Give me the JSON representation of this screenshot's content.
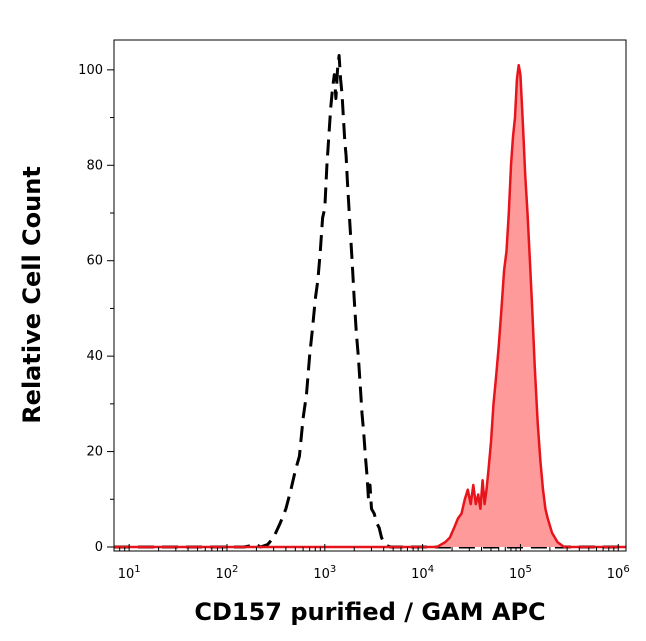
{
  "chart_data": {
    "type": "area",
    "xlabel": "CD157 purified  / GAM APC",
    "ylabel": "Relative Cell Count",
    "xscale": "log",
    "xlim": [
      7,
      1200000
    ],
    "ylim": [
      0,
      105
    ],
    "x_ticks": [
      {
        "value": 10,
        "base": "10",
        "exp": "1"
      },
      {
        "value": 100,
        "base": "10",
        "exp": "2"
      },
      {
        "value": 1000,
        "base": "10",
        "exp": "3"
      },
      {
        "value": 10000,
        "base": "10",
        "exp": "4"
      },
      {
        "value": 100000,
        "base": "10",
        "exp": "5"
      },
      {
        "value": 1000000,
        "base": "10",
        "exp": "6"
      }
    ],
    "y_ticks": [
      0,
      20,
      40,
      60,
      80,
      100
    ],
    "grid": false,
    "series": [
      {
        "style": "dashed",
        "color": "#000000",
        "fill": "none",
        "x": [
          7,
          150,
          200,
          220,
          260,
          300,
          350,
          400,
          450,
          500,
          550,
          600,
          650,
          700,
          750,
          800,
          850,
          900,
          950,
          1000,
          1050,
          1100,
          1150,
          1200,
          1250,
          1300,
          1350,
          1400,
          1450,
          1500,
          1550,
          1600,
          1650,
          1700,
          1800,
          1900,
          2000,
          2100,
          2200,
          2300,
          2400,
          2500,
          2600,
          2700,
          2800,
          2900,
          3000,
          3200,
          3400,
          3600,
          3800,
          4000,
          4300,
          4700,
          1200000
        ],
        "y": [
          0,
          0,
          0.5,
          0,
          0.5,
          2,
          5,
          8,
          12,
          16,
          19,
          27,
          32,
          40,
          46,
          52,
          56,
          62,
          69,
          71,
          80,
          86,
          92,
          96,
          99,
          94,
          100,
          103,
          98,
          95,
          90,
          85,
          82,
          77,
          68,
          60,
          52,
          45,
          40,
          34,
          28,
          24,
          19,
          15,
          10,
          13,
          8,
          7,
          5,
          4,
          2,
          1,
          0.3,
          0,
          0
        ]
      },
      {
        "style": "solid",
        "color": "#e8141c",
        "fill": "#ff9a9a",
        "x": [
          7,
          14000,
          17000,
          19000,
          21000,
          23000,
          25000,
          27000,
          29000,
          31000,
          33000,
          35000,
          37000,
          39000,
          41000,
          43000,
          45000,
          47000,
          50000,
          53000,
          56000,
          60000,
          64000,
          68000,
          72000,
          76000,
          80000,
          84000,
          88000,
          92000,
          96000,
          100000,
          104000,
          108000,
          112000,
          118000,
          125000,
          132000,
          140000,
          150000,
          160000,
          170000,
          180000,
          190000,
          210000,
          240000,
          280000,
          1200000
        ],
        "y": [
          0,
          0,
          1,
          2,
          4,
          6,
          7,
          10,
          12,
          9,
          13,
          9,
          11,
          8,
          14,
          9,
          12,
          16,
          22,
          30,
          35,
          42,
          50,
          58,
          62,
          70,
          80,
          86,
          90,
          98,
          101,
          99,
          92,
          85,
          78,
          70,
          60,
          50,
          38,
          26,
          18,
          12,
          8,
          6,
          3,
          1,
          0,
          0
        ]
      }
    ]
  }
}
